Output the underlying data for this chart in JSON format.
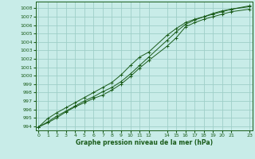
{
  "title": "Graphe pression niveau de la mer (hPa)",
  "background_color": "#c8ece8",
  "grid_color": "#9fcfc8",
  "line_color": "#1a5c1a",
  "xlim": [
    -0.3,
    23.3
  ],
  "ylim": [
    993.5,
    1008.8
  ],
  "xticks": [
    0,
    1,
    2,
    3,
    4,
    5,
    6,
    7,
    8,
    9,
    10,
    11,
    12,
    14,
    15,
    16,
    17,
    18,
    19,
    20,
    21,
    23
  ],
  "yticks": [
    994,
    995,
    996,
    997,
    998,
    999,
    1000,
    1001,
    1002,
    1003,
    1004,
    1005,
    1006,
    1007,
    1008
  ],
  "series1_x": [
    0,
    1,
    2,
    3,
    4,
    5,
    6,
    7,
    8,
    9,
    10,
    11,
    12,
    14,
    15,
    16,
    17,
    18,
    19,
    20,
    21,
    23
  ],
  "series1_y": [
    993.9,
    994.4,
    995.0,
    995.7,
    996.3,
    996.8,
    997.3,
    997.7,
    998.3,
    999.0,
    999.9,
    1000.9,
    1001.8,
    1003.5,
    1004.5,
    1005.8,
    1006.3,
    1006.7,
    1007.0,
    1007.3,
    1007.6,
    1007.9
  ],
  "series2_x": [
    0,
    1,
    2,
    3,
    4,
    5,
    6,
    7,
    8,
    9,
    10,
    11,
    12,
    14,
    15,
    16,
    17,
    18,
    19,
    20,
    21,
    23
  ],
  "series2_y": [
    993.9,
    994.5,
    995.2,
    995.8,
    996.4,
    997.0,
    997.5,
    998.1,
    998.6,
    999.3,
    1000.2,
    1001.2,
    1002.2,
    1004.2,
    1005.2,
    1006.1,
    1006.6,
    1007.0,
    1007.3,
    1007.6,
    1007.9,
    1008.2
  ],
  "series3_x": [
    0,
    1,
    2,
    3,
    4,
    5,
    6,
    7,
    8,
    9,
    10,
    11,
    12,
    14,
    15,
    16,
    17,
    18,
    19,
    20,
    21,
    23
  ],
  "series3_y": [
    993.9,
    994.9,
    995.6,
    996.2,
    996.8,
    997.4,
    998.0,
    998.6,
    999.2,
    1000.1,
    1001.2,
    1002.2,
    1002.8,
    1004.8,
    1005.6,
    1006.3,
    1006.7,
    1007.0,
    1007.4,
    1007.7,
    1007.9,
    1008.3
  ]
}
